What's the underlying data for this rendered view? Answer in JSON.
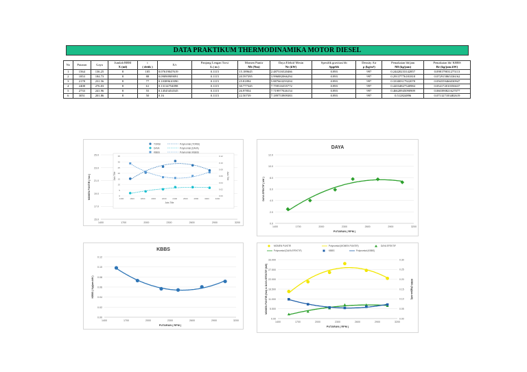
{
  "title": "DATA PRAKTIKUM THERMODINAMIKA MOTOR DIESEL",
  "table": {
    "headers": [
      {
        "l1": "No",
        "l2": ""
      },
      {
        "l1": "Putaran",
        "l2": ""
      },
      {
        "l1": "Gaya",
        "l2": ""
      },
      {
        "l1": "Jumlah BBM",
        "l2": "X (ml)"
      },
      {
        "l1": "t",
        "l2": "( detik )"
      },
      {
        "l1": "X/t",
        "l2": ""
      },
      {
        "l1": "Panjang Lengan Torsi",
        "l2": "L ( m )"
      },
      {
        "l1": "Momen Puntir",
        "l2": "Mt (Nm)"
      },
      {
        "l1": "Daya Efektif Mesin",
        "l2": "Ne (kW)"
      },
      {
        "l1": "Spesifik gravitasi bb",
        "l2": "Spgrbb"
      },
      {
        "l1": "Density Air",
        "l2": "ρ (kg/m³)"
      },
      {
        "l1": "Pemakaian bb/jam",
        "l2": "Mf (kg/jam)"
      },
      {
        "l1": "Pemakaian bb/ KBBS",
        "l2": "Be (kg/jam.kW)"
      }
    ],
    "rows": [
      [
        "1",
        "1564",
        "136.25",
        "8",
        "105",
        "0.07619047619",
        "0.1115",
        "15.189645",
        "2.487316520466",
        "0.893",
        "997",
        "0.24420233142857",
        "0.098179031275113"
      ],
      [
        "2",
        "1853",
        "184.73",
        "8",
        "88",
        "0.09090909091",
        "0.1115",
        "20.597395",
        "3.996882066294",
        "0.893",
        "997",
        "0.29137776181818",
        "0.072915865336162"
      ],
      [
        "3",
        "2178",
        "231.56",
        "8",
        "77",
        "0.10389610390",
        "0.1115",
        "25.81894",
        "5.887663293204",
        "0.893",
        "997",
        "0.33300317922078",
        "0.056559466030947"
      ],
      [
        "4",
        "2408",
        "276.03",
        "8",
        "61",
        "0.13114754098",
        "0.1115",
        "30.777345",
        "7.759516355772",
        "0.893",
        "997",
        "0.42034827540984",
        "0.054172010356637"
      ],
      [
        "5",
        "2733",
        "241.96",
        "8",
        "55",
        "0.14545454545",
        "0.1115",
        "26.97854",
        "7.719977026154",
        "0.893",
        "997",
        "0.46620945090909",
        "0.060390821627077"
      ],
      [
        "6",
        "3051",
        "201.86",
        "8",
        "50",
        "0.16",
        "0.1115",
        "22.50739",
        "7.189753909383",
        "0.893",
        "997",
        "0.512824896",
        "0.071327183482619"
      ]
    ]
  },
  "chart_data": [
    {
      "type": "scatter",
      "title": "",
      "legend": [
        "TORSI",
        "DAYA",
        "KBBS",
        "Polynomial (TORSI)",
        "Polynomial (DAYA)",
        "Polynomial (KBBS)"
      ],
      "xlabel": "PUTARAN ( RPM )",
      "ylabel": "MOMEN PUNTIR ( Nm )",
      "inner_xlabel": "Axis Title",
      "inner_ylabel_left": "Axis Title",
      "inner_ylabel_right": "Axis Title",
      "xticks": [
        "1400",
        "1700",
        "2000",
        "2300",
        "2600",
        "2900",
        "3200"
      ],
      "inner_xticks": [
        "1400",
        "1600",
        "1800",
        "2000",
        "2200",
        "2400",
        "2600",
        "2800",
        "3000",
        "3200"
      ],
      "yticks": [
        "15.0",
        "17.0",
        "19.0",
        "21.0",
        "23.0",
        "25.0"
      ],
      "inner_yticks_left": [
        "0",
        "5",
        "10",
        "15",
        "20",
        "25",
        "30",
        "35"
      ],
      "inner_yticks_right": [
        "0.00",
        "0.02",
        "0.04",
        "0.06",
        "0.08",
        "0.10",
        "0.12"
      ],
      "colors": {
        "TORSI": "#2e75b6",
        "DAYA": "#17becf",
        "KBBS": "#5b9bd5"
      },
      "x": [
        1564,
        1853,
        2178,
        2408,
        2733,
        3051
      ],
      "series": [
        {
          "name": "TORSI",
          "values": [
            15.19,
            20.6,
            25.82,
            30.78,
            26.98,
            22.51
          ]
        },
        {
          "name": "DAYA",
          "values": [
            2.49,
            4.0,
            5.89,
            7.76,
            7.72,
            7.19
          ]
        },
        {
          "name": "KBBS",
          "values": [
            0.0982,
            0.0729,
            0.0566,
            0.0542,
            0.0604,
            0.0713
          ]
        }
      ]
    },
    {
      "type": "scatter",
      "title": "DAYA",
      "xlabel": "PUTARAN ( RPM )",
      "ylabel": "DAYA EFEKTIF ( kW )",
      "xticks": [
        "1400",
        "1700",
        "2000",
        "2300",
        "2600",
        "2900",
        "3200"
      ],
      "yticks": [
        "0.0",
        "2.0",
        "4.0",
        "6.0",
        "8.0",
        "10.0",
        "12.0"
      ],
      "ylim": [
        0,
        12
      ],
      "xlim": [
        1400,
        3200
      ],
      "color": "#2ca02c",
      "x": [
        1564,
        1853,
        2178,
        2408,
        2733,
        3051
      ],
      "values": [
        2.49,
        4.0,
        5.89,
        7.76,
        7.72,
        7.19
      ]
    },
    {
      "type": "scatter",
      "title": "KBBS",
      "xlabel": "PUTARAN ( RPM )",
      "ylabel": "KBBS ( Kg/jam.kW )",
      "xticks": [
        "1400",
        "1700",
        "2000",
        "2300",
        "2600",
        "2900",
        "3200"
      ],
      "yticks": [
        "0.00",
        "0.02",
        "0.04",
        "0.06",
        "0.08",
        "0.10",
        "0.12"
      ],
      "ylim": [
        0,
        0.12
      ],
      "xlim": [
        1400,
        3200
      ],
      "color": "#2e75b6",
      "x": [
        1564,
        1853,
        2178,
        2408,
        2733,
        3051
      ],
      "values": [
        0.0982,
        0.0729,
        0.0566,
        0.0542,
        0.0604,
        0.0713
      ]
    },
    {
      "type": "scatter",
      "title": "",
      "legend": [
        "MOMEN PUNTIR",
        "Polynomial (MOMEN PUNTIR)",
        "DAYA EFEKTIF",
        "Polynomial (DAYA EFEKTIF)",
        "KBBS",
        "Polynomial (KBBS)"
      ],
      "xlabel": "PUTARAN ( RPM )",
      "ylabel": "MOMEN PUNTIR (Nm) & DAYA EFEKTIF (kW)",
      "ylabel_right": "KBBS (Kg/jam.kW)",
      "xticks": [
        "1400",
        "1700",
        "2000",
        "2300",
        "2600",
        "2900",
        "3200"
      ],
      "yticks": [
        "0.00",
        "5.500",
        "11.000",
        "16.500",
        "22.000",
        "27.500",
        "33.000"
      ],
      "yticks_right": [
        "0.00",
        "0.05",
        "0.10",
        "0.15",
        "0.20",
        "0.25",
        "0.30"
      ],
      "ylim": [
        0,
        33
      ],
      "ylim_right": [
        0,
        0.3
      ],
      "xlim": [
        1400,
        3200
      ],
      "colors": {
        "MOMEN PUNTIR": "#f2e600",
        "DAYA EFEKTIF": "#2ca02c",
        "KBBS": "#1f5fa8"
      },
      "x": [
        1564,
        1853,
        2178,
        2408,
        2733,
        3051
      ],
      "series": [
        {
          "name": "MOMEN PUNTIR",
          "axis": "left",
          "values": [
            15.19,
            20.6,
            25.82,
            30.78,
            26.98,
            22.51
          ]
        },
        {
          "name": "DAYA EFEKTIF",
          "axis": "left",
          "values": [
            2.49,
            4.0,
            5.89,
            7.76,
            7.72,
            7.19
          ]
        },
        {
          "name": "KBBS",
          "axis": "right",
          "values": [
            0.0982,
            0.0729,
            0.0566,
            0.0542,
            0.0604,
            0.0713
          ]
        }
      ]
    }
  ]
}
